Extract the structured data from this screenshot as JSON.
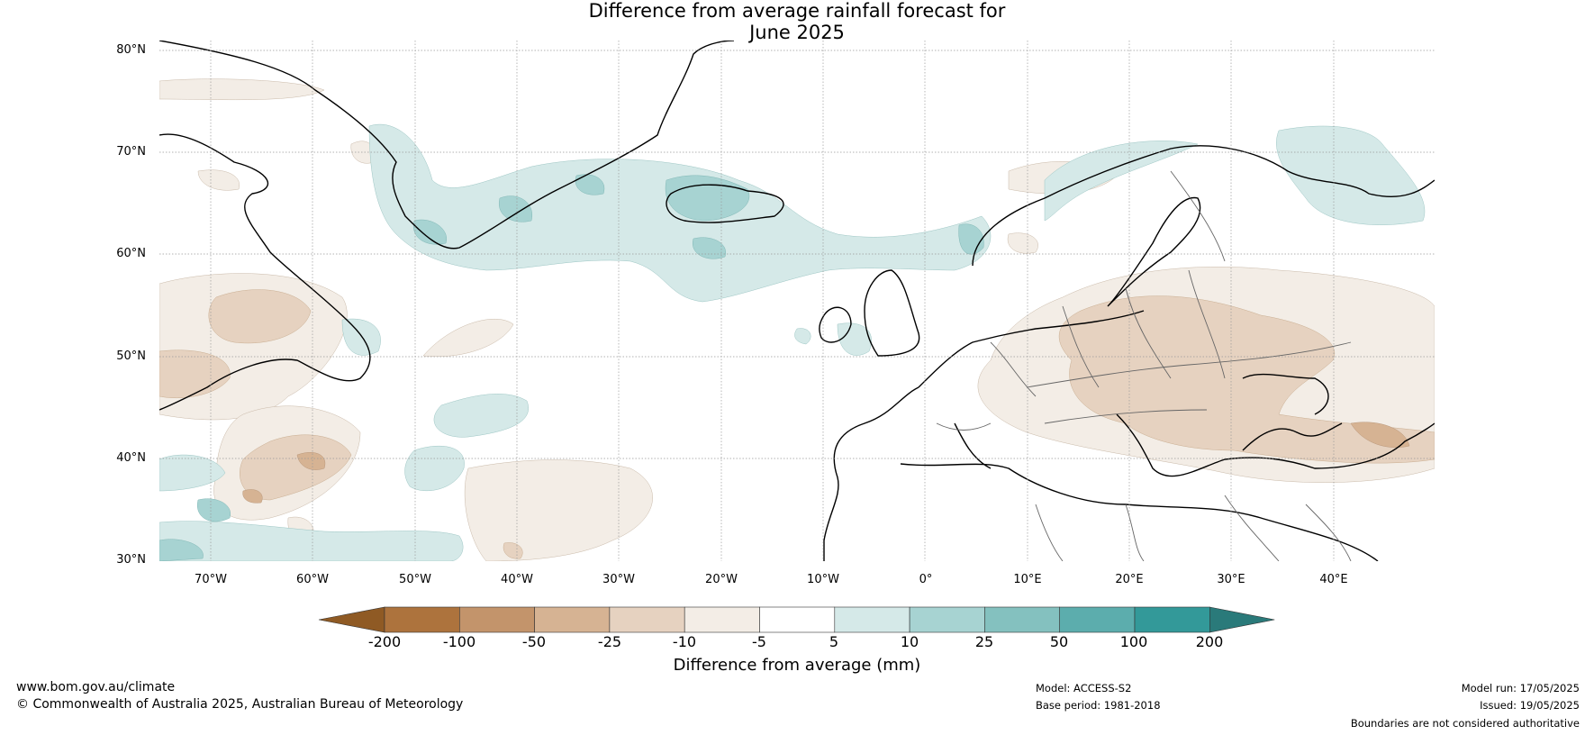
{
  "title_line1": "Difference from average rainfall forecast for",
  "title_line2": "June 2025",
  "latitudes": [
    "80°N",
    "70°N",
    "60°N",
    "50°N",
    "40°N",
    "30°N"
  ],
  "longitudes": [
    "70°W",
    "60°W",
    "50°W",
    "40°W",
    "30°W",
    "20°W",
    "10°W",
    "0°",
    "10°E",
    "20°E",
    "30°E",
    "40°E"
  ],
  "colorbar": {
    "labels": [
      "-200",
      "-100",
      "-50",
      "-25",
      "-10",
      "-5",
      "5",
      "10",
      "25",
      "50",
      "100",
      "200"
    ],
    "colors": [
      "#8f5a24",
      "#ad733d",
      "#c3946b",
      "#d6b393",
      "#e6d2c0",
      "#f3ede6",
      "#ffffff",
      "#d5e9e8",
      "#a7d3d2",
      "#84c1bf",
      "#5cadad",
      "#339999",
      "#2a7a7a"
    ],
    "title": "Difference from average (mm)"
  },
  "footer": {
    "url": "www.bom.gov.au/climate",
    "copyright": "© Commonwealth of Australia 2025, Australian Bureau of Meteorology",
    "model": "Model: ACCESS-S2",
    "base_period": "Base period: 1981-2018",
    "model_run": "Model run: 17/05/2025",
    "issued": "Issued: 19/05/2025",
    "disclaimer": "Boundaries are not considered authoritative"
  }
}
